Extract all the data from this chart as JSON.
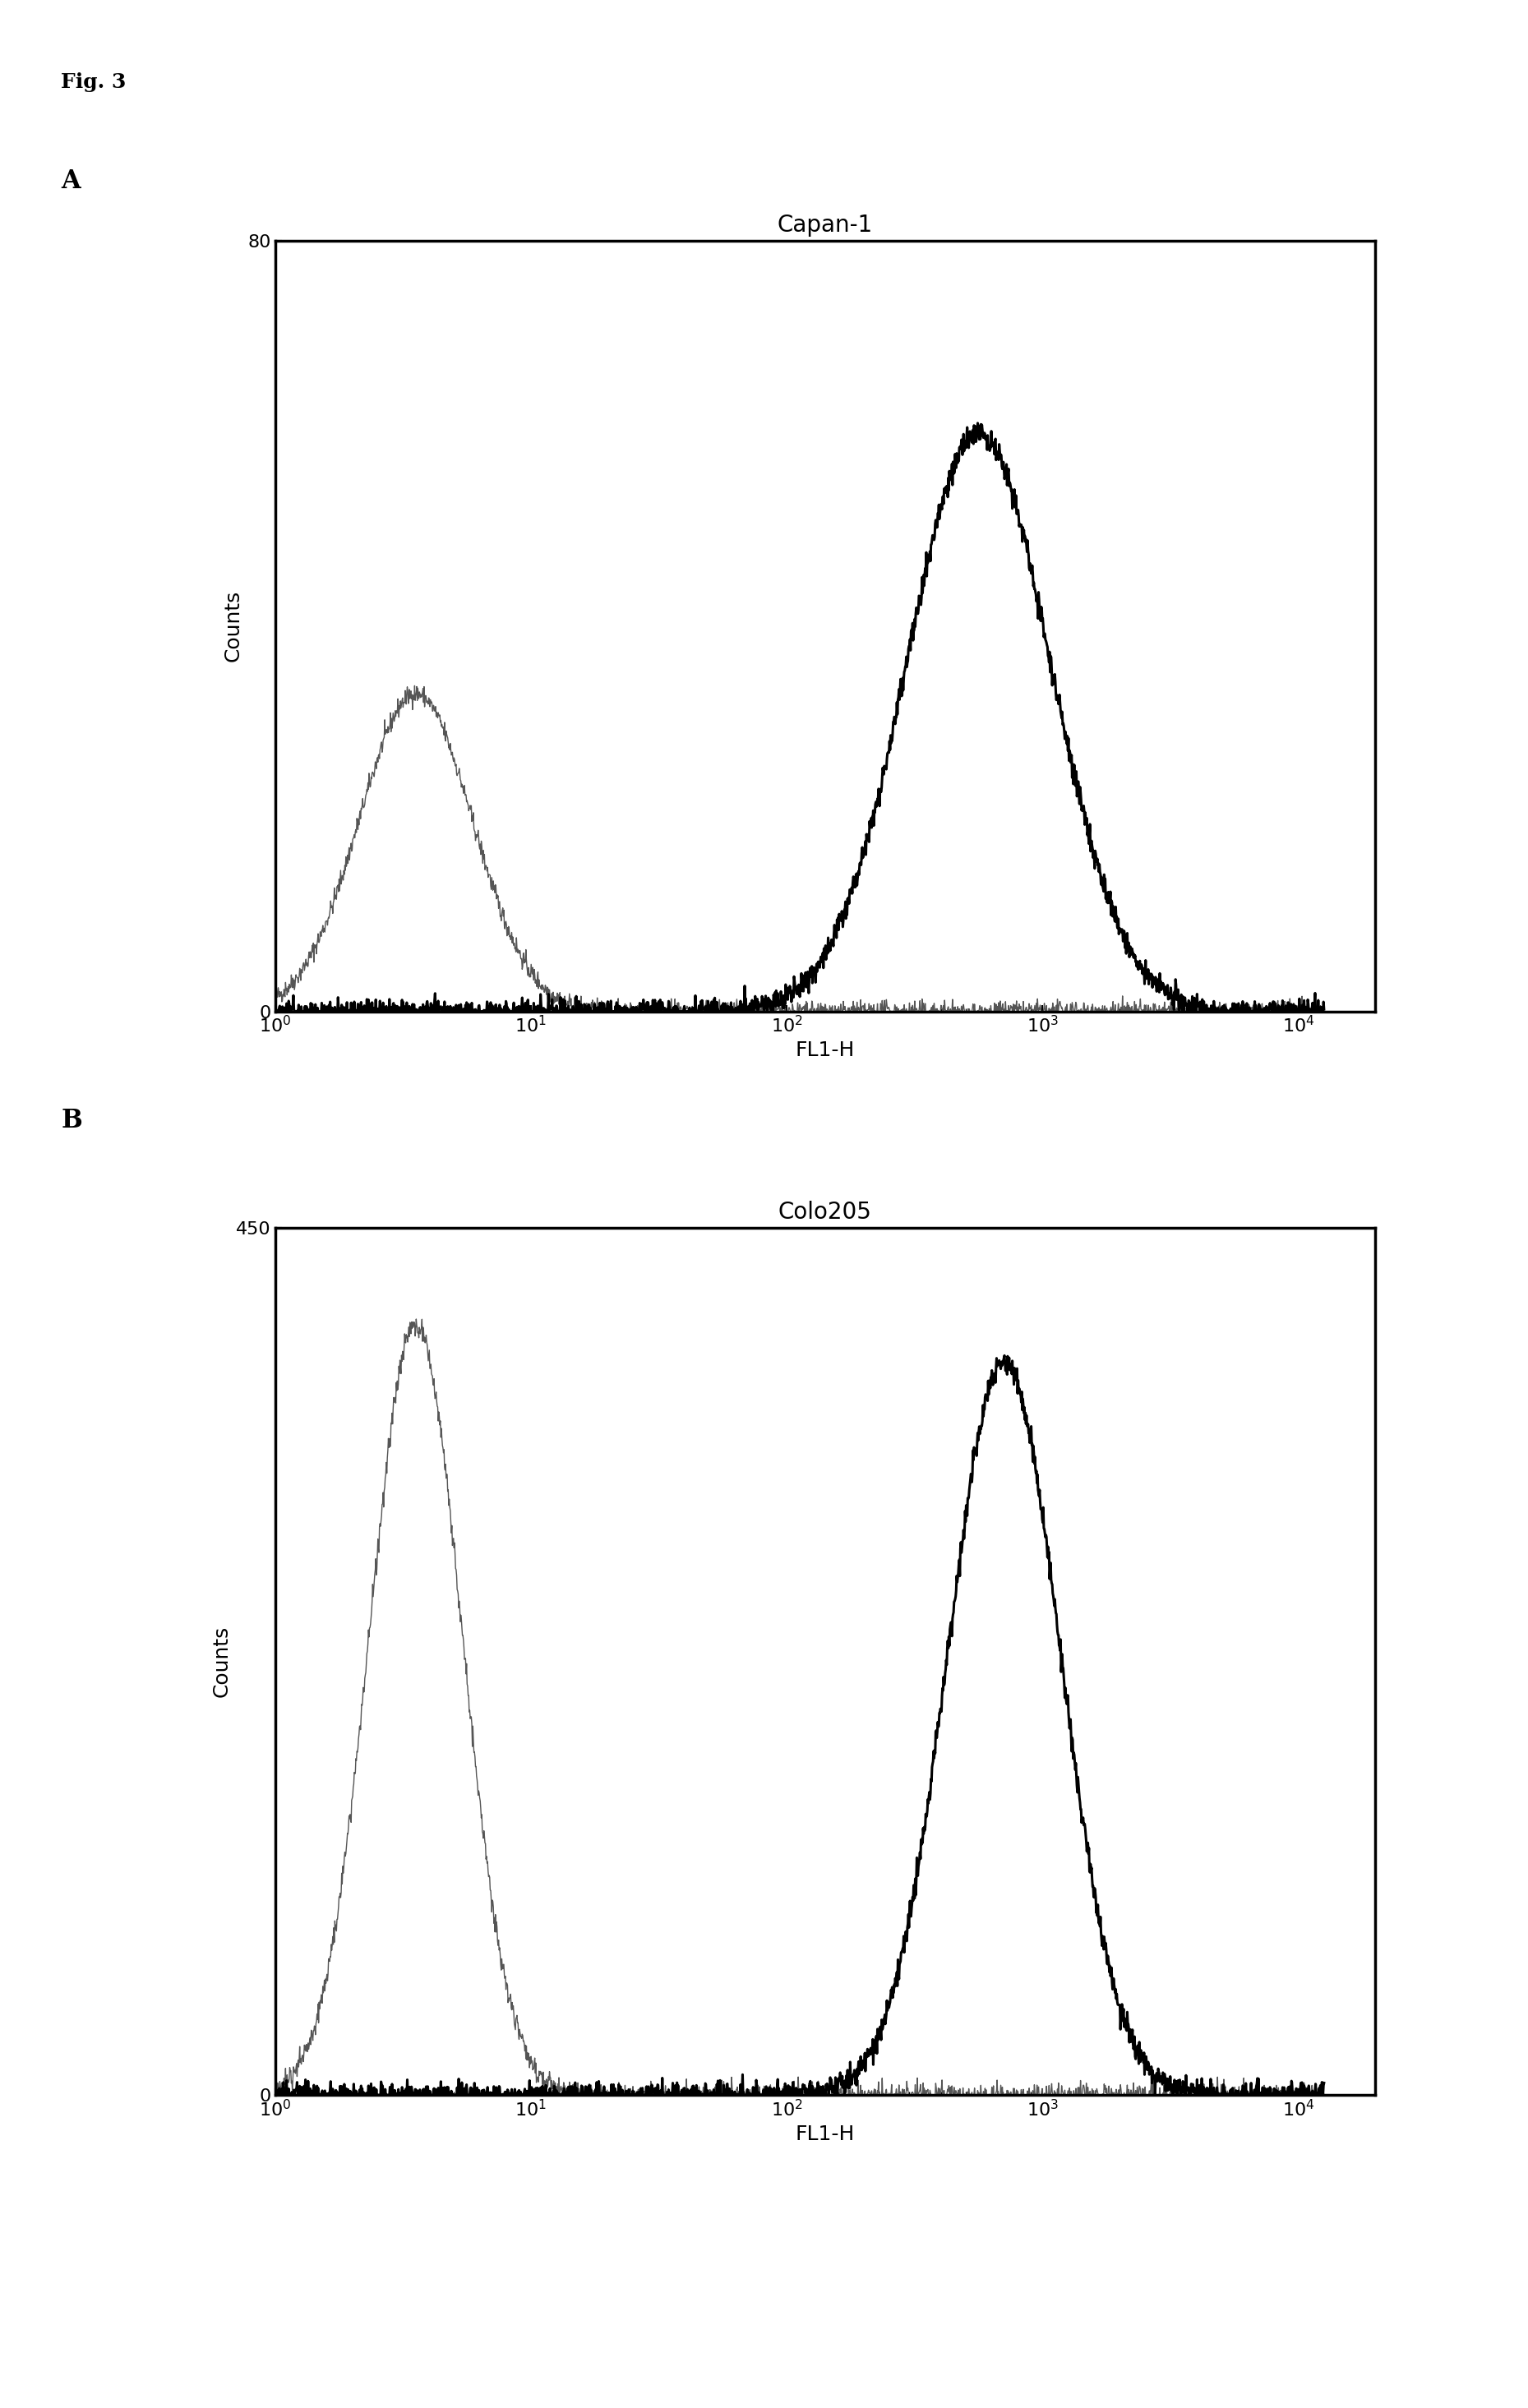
{
  "fig_label": "Fig. 3",
  "panel_A": {
    "title": "Capan-1",
    "xlabel": "FL1-H",
    "ylabel": "Counts",
    "ylim": [
      0,
      80
    ],
    "xlim_log": [
      1.0,
      4.0
    ],
    "control_peak_log_mean": 0.55,
    "control_peak_log_sigma": 0.22,
    "control_peak_height": 33,
    "antibody_peak_log_mean": 2.75,
    "antibody_peak_log_sigma": 0.28,
    "antibody_peak_height": 60
  },
  "panel_B": {
    "title": "Colo205",
    "xlabel": "FL1-H",
    "ylabel": "Counts",
    "ylim": [
      0,
      450
    ],
    "xlim_log": [
      1.0,
      4.0
    ],
    "control_peak_log_mean": 0.55,
    "control_peak_log_sigma": 0.18,
    "control_peak_height": 400,
    "antibody_peak_log_mean": 2.85,
    "antibody_peak_log_sigma": 0.22,
    "antibody_peak_height": 380
  },
  "thin_line_color": "#555555",
  "thick_line_color": "#000000",
  "thin_linewidth": 1.0,
  "thick_linewidth": 2.2,
  "background_color": "#ffffff",
  "fig3_fontsize": 18,
  "panel_label_fontsize": 22,
  "title_fontsize": 20,
  "axis_label_fontsize": 18,
  "tick_fontsize": 16
}
